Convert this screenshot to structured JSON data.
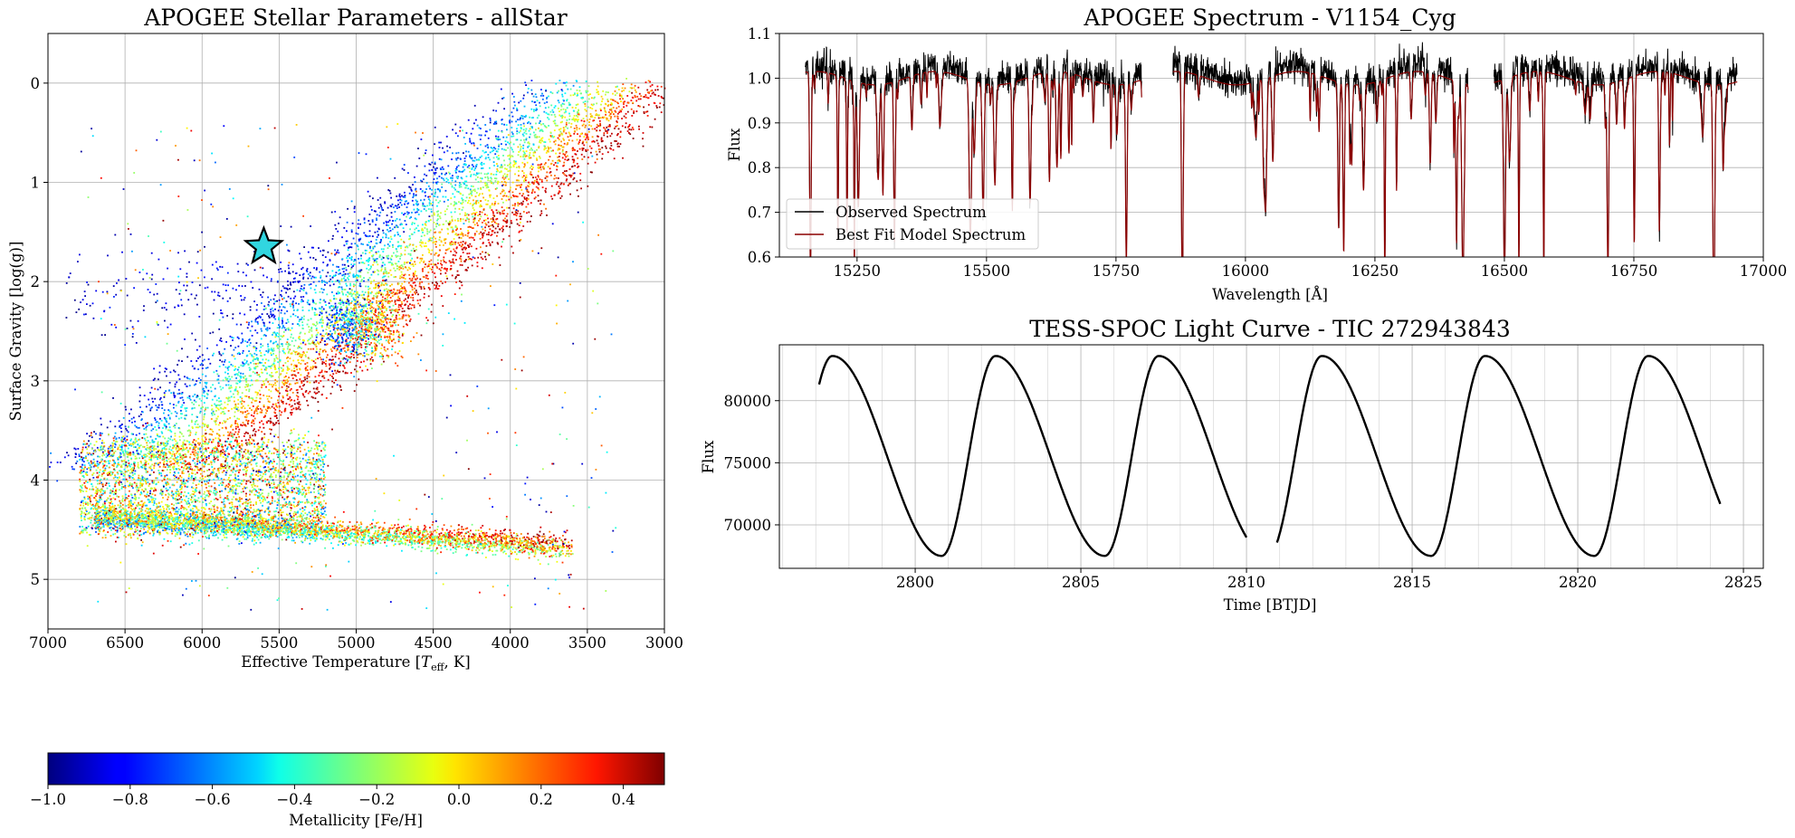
{
  "chart_data": [
    {
      "id": "kiel",
      "type": "scatter",
      "title": "APOGEE Stellar Parameters - allStar",
      "xlabel": "Effective Temperature [T_eff, K]",
      "xlabel_parts": {
        "pre": "Effective Temperature [",
        "sym": "T",
        "sub": "eff",
        "post": ", K]"
      },
      "ylabel": "Surface Gravity [log(g)]",
      "xlim": [
        7000,
        3000
      ],
      "ylim": [
        5.5,
        -0.5
      ],
      "xticks": [
        7000,
        6500,
        6000,
        5500,
        5000,
        4500,
        4000,
        3500,
        3000
      ],
      "yticks": [
        0,
        1,
        2,
        3,
        4,
        5
      ],
      "grid": true,
      "colormap": "jet",
      "color_range": [
        -1.0,
        0.5
      ],
      "highlight": {
        "teff": 5600,
        "logg": 1.65,
        "marker": "star",
        "color": "#31d6e0"
      },
      "populations": [
        {
          "name": "red-giant-branch",
          "teff_range": [
            3150,
            5150
          ],
          "logg_range": [
            0.0,
            4.0
          ],
          "fe_h_range": [
            -1.0,
            0.5
          ]
        },
        {
          "name": "main-sequence",
          "teff_range": [
            3600,
            6800
          ],
          "logg_range": [
            3.3,
            4.7
          ],
          "fe_h_range": [
            -0.5,
            0.4
          ]
        },
        {
          "name": "horizontal-branch",
          "teff_range": [
            4800,
            6900
          ],
          "logg_range": [
            1.8,
            2.8
          ],
          "fe_h_range": [
            -1.0,
            -0.7
          ]
        }
      ]
    },
    {
      "id": "spectrum",
      "type": "line",
      "title": "APOGEE Spectrum - V1154_Cyg",
      "xlabel": "Wavelength [Å]",
      "ylabel": "Flux",
      "xlim": [
        15100,
        17000
      ],
      "ylim": [
        0.6,
        1.1
      ],
      "xticks": [
        15250,
        15500,
        15750,
        16000,
        16250,
        16500,
        16750,
        17000
      ],
      "yticks": [
        0.6,
        0.7,
        0.8,
        0.9,
        1.0,
        1.1
      ],
      "ytick_labels": [
        "0.6",
        "0.7",
        "0.8",
        "0.9",
        "1.0",
        "1.1"
      ],
      "grid": true,
      "legend_placement": "lower-left",
      "detector_segments": [
        [
          15150,
          15800
        ],
        [
          15860,
          16430
        ],
        [
          16480,
          16950
        ]
      ],
      "series": [
        {
          "name": "Observed Spectrum",
          "color": "#000000"
        },
        {
          "name": "Best Fit Model Spectrum",
          "color": "#8b0000"
        }
      ]
    },
    {
      "id": "lightcurve",
      "type": "line",
      "title": "TESS-SPOC Light Curve - TIC 272943843",
      "xlabel": "Time [BTJD]",
      "ylabel": "Flux",
      "xlim": [
        2795.9,
        2825.6
      ],
      "ylim": [
        66500,
        84500
      ],
      "xticks": [
        2800,
        2805,
        2810,
        2815,
        2820,
        2825
      ],
      "yticks": [
        70000,
        75000,
        80000
      ],
      "grid": true,
      "period_days": 4.925,
      "flux_min": 67500,
      "flux_max": 83600,
      "first_max_btjd": 2797.5,
      "data_gap_btjd": [
        2810.0,
        2810.9
      ],
      "time_range": [
        2797.1,
        2824.3
      ],
      "series": [
        {
          "name": "",
          "color": "#000000"
        }
      ]
    }
  ],
  "colorbar": {
    "label": "Metallicity [Fe/H]",
    "range": [
      -1.0,
      0.5
    ],
    "ticks": [
      -1.0,
      -0.8,
      -0.6,
      -0.4,
      -0.2,
      0.0,
      0.2,
      0.4
    ],
    "tick_labels": [
      "−1.0",
      "−0.8",
      "−0.6",
      "−0.4",
      "−0.2",
      "0.0",
      "0.2",
      "0.4"
    ]
  }
}
